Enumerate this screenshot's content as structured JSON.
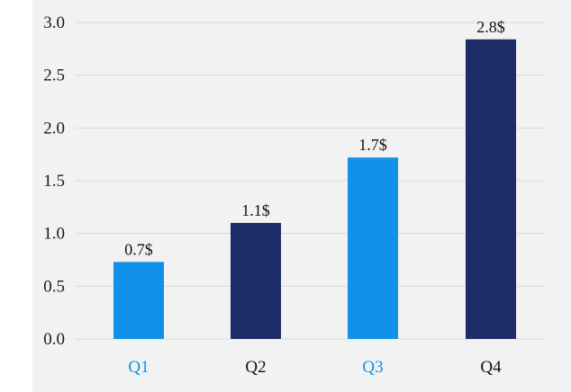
{
  "chart_data": {
    "type": "bar",
    "title": "",
    "xlabel": "",
    "ylabel": "",
    "categories": [
      "Q1",
      "Q2",
      "Q3",
      "Q4"
    ],
    "values": [
      0.73,
      1.1,
      1.72,
      2.84
    ],
    "data_labels": [
      "0.7$",
      "1.1$",
      "1.7$",
      "2.8$"
    ],
    "ylim": [
      0,
      3.0
    ],
    "yticks": [
      0.0,
      0.5,
      1.0,
      1.5,
      2.0,
      2.5,
      3.0
    ],
    "ytick_labels": [
      "0.0",
      "0.5",
      "1.0",
      "1.5",
      "2.0",
      "2.5",
      "3.0"
    ],
    "grid": true,
    "legend": "none",
    "bar_colors": [
      "#1191e8",
      "#1e2d67",
      "#1191e8",
      "#1e2d67"
    ],
    "category_label_colors": [
      "#1191e8",
      "#111111",
      "#1191e8",
      "#111111"
    ],
    "plot_background": "#f2f2f2",
    "grid_color": "#d9d9d9"
  }
}
